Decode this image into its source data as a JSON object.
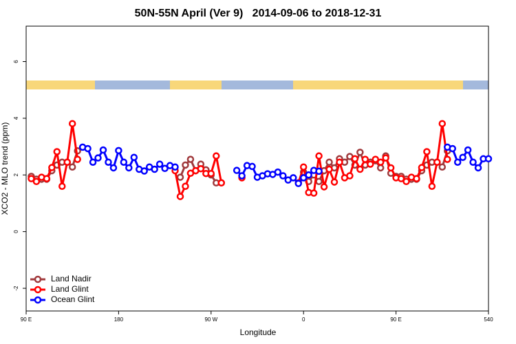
{
  "chart_data": {
    "type": "line",
    "title": "50N-55N April (Ver 9)   2014-09-06 to 2018-12-31",
    "xlabel": "Longitude",
    "ylabel": "XCO2 - MLO trend (ppm)",
    "xlim": [
      90,
      540
    ],
    "ylim": [
      -2.8,
      7.25
    ],
    "xticks": [
      {
        "value": 90,
        "label": "90 E"
      },
      180,
      {
        "value": 270,
        "label": "90 W"
      },
      {
        "value": 360,
        "label": "0"
      },
      {
        "value": 450,
        "label": "90 E"
      },
      540
    ],
    "yticks": [
      -2,
      0,
      2,
      4,
      6
    ],
    "legend": "bottom-left",
    "series": [
      {
        "name": "Land Nadir",
        "color": "#a0393c",
        "x": [
          95,
          100,
          105,
          110,
          115,
          120,
          125,
          130,
          135,
          140,
          145,
          240,
          245,
          250,
          255,
          260,
          265,
          270,
          275,
          280,
          285,
          360,
          365,
          370,
          375,
          380,
          385,
          390,
          395,
          400,
          405,
          410,
          415,
          420,
          425,
          430,
          435,
          440,
          445,
          450,
          455,
          460,
          465,
          470,
          475,
          480,
          485,
          490,
          495,
          500
        ],
        "values": [
          1.95,
          1.85,
          1.85,
          1.85,
          2.15,
          2.35,
          2.45,
          2.45,
          2.28,
          2.85,
          null,
          1.92,
          2.35,
          2.55,
          2.15,
          2.38,
          2.18,
          2.0,
          1.72,
          1.72,
          null,
          2.1,
          1.77,
          2.0,
          1.77,
          2.15,
          2.45,
          2.25,
          2.57,
          2.45,
          2.65,
          2.35,
          2.8,
          2.35,
          2.45,
          2.5,
          2.25,
          2.67,
          2.06,
          1.95,
          1.95,
          1.85,
          1.85,
          1.85,
          2.15,
          2.35,
          2.45,
          2.45,
          2.28,
          2.85
        ]
      },
      {
        "name": "Land Glint",
        "color": "#ff0000",
        "x": [
          95,
          100,
          105,
          110,
          115,
          120,
          125,
          130,
          135,
          140,
          145,
          235,
          240,
          245,
          250,
          255,
          260,
          265,
          270,
          275,
          280,
          285,
          300,
          305,
          355,
          360,
          365,
          370,
          375,
          380,
          385,
          390,
          395,
          400,
          405,
          410,
          415,
          420,
          425,
          430,
          435,
          440,
          445,
          450,
          455,
          460,
          465,
          470,
          475,
          480,
          485,
          490,
          495,
          500
        ],
        "values": [
          1.87,
          1.77,
          1.92,
          1.87,
          2.26,
          2.82,
          1.6,
          2.45,
          3.81,
          2.55,
          null,
          2.15,
          1.24,
          1.6,
          2.06,
          2.15,
          2.22,
          2.05,
          2.05,
          2.67,
          1.72,
          null,
          1.9,
          null,
          1.72,
          2.28,
          1.38,
          1.36,
          2.67,
          1.58,
          2.2,
          1.75,
          2.45,
          1.9,
          1.97,
          2.57,
          2.2,
          2.55,
          2.38,
          2.55,
          2.45,
          2.6,
          2.25,
          1.9,
          1.87,
          1.77,
          1.92,
          1.87,
          2.26,
          2.82,
          1.6,
          2.45,
          3.81,
          2.55
        ]
      },
      {
        "name": "Ocean Glint",
        "color": "#0000ff",
        "x": [
          145,
          150,
          155,
          160,
          165,
          170,
          175,
          180,
          185,
          190,
          195,
          200,
          205,
          210,
          215,
          220,
          225,
          230,
          235,
          240,
          295,
          300,
          305,
          310,
          315,
          320,
          325,
          330,
          335,
          340,
          345,
          350,
          355,
          360,
          365,
          370,
          375,
          380,
          500,
          505,
          510,
          515,
          520,
          525,
          530,
          535,
          540
        ],
        "values": [
          2.98,
          2.93,
          2.45,
          2.6,
          2.88,
          2.45,
          2.25,
          2.86,
          2.45,
          2.25,
          2.62,
          2.2,
          2.14,
          2.28,
          2.2,
          2.38,
          2.23,
          2.33,
          2.28,
          null,
          2.16,
          1.97,
          2.33,
          2.3,
          1.92,
          1.97,
          2.04,
          2.02,
          2.1,
          1.97,
          1.82,
          1.9,
          1.7,
          1.9,
          2.0,
          2.16,
          2.13,
          null,
          2.98,
          2.93,
          2.45,
          2.62,
          2.88,
          2.45,
          2.25,
          2.57,
          2.57
        ]
      }
    ]
  }
}
